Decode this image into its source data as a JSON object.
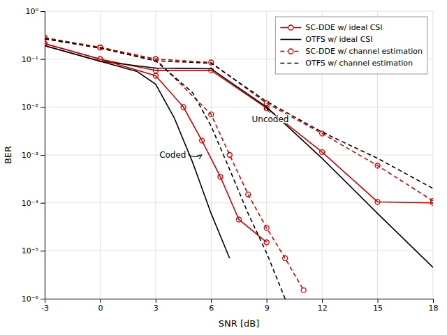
{
  "chart_data": {
    "type": "line",
    "xlabel": "SNR [dB]",
    "ylabel": "BER",
    "log": "y",
    "grid": true,
    "legend": "upper right",
    "xlim": [
      -3,
      18
    ],
    "xticks": [
      -3,
      0,
      3,
      6,
      9,
      12,
      15,
      18
    ],
    "ylim": [
      1e-06,
      1
    ],
    "yticks": [
      {
        "value": 1e-06,
        "label": "10⁻⁶"
      },
      {
        "value": 1e-05,
        "label": "10⁻⁵"
      },
      {
        "value": 0.0001,
        "label": "10⁻⁴"
      },
      {
        "value": 0.001,
        "label": "10⁻³"
      },
      {
        "value": 0.01,
        "label": "10⁻²"
      },
      {
        "value": 0.1,
        "label": "10⁻¹"
      },
      {
        "value": 1,
        "label": "10⁰"
      }
    ],
    "series": [
      {
        "name": "SC-DDE w/ ideal CSI",
        "color": "#CC0000",
        "line_style": "solid",
        "marker": "circle",
        "x": [
          -3,
          0,
          3,
          6,
          9,
          12,
          15,
          18
        ],
        "values": [
          0.21,
          0.1,
          0.058,
          0.058,
          0.0095,
          0.00115,
          0.000105,
          0.0001
        ]
      },
      {
        "name": "OTFS w/ ideal CSI",
        "color": "#000000",
        "line_style": "solid",
        "marker": "none",
        "x": [
          -3,
          0,
          3,
          6,
          9,
          12,
          15,
          18
        ],
        "values": [
          0.19,
          0.09,
          0.065,
          0.063,
          0.01,
          0.00085,
          6e-05,
          4.5e-06
        ]
      },
      {
        "name": "SC-DDE w/ channel estimation",
        "color": "#CC0000",
        "line_style": "dashed",
        "marker": "circle",
        "x": [
          -3,
          0,
          3,
          6,
          9,
          12,
          15,
          18
        ],
        "values": [
          0.28,
          0.175,
          0.1,
          0.085,
          0.012,
          0.0028,
          0.0006,
          0.00011
        ]
      },
      {
        "name": "OTFS w/ channel estimation",
        "color": "#000000",
        "line_style": "dashed",
        "marker": "none",
        "x": [
          -3,
          0,
          3,
          6,
          9,
          12,
          15,
          18
        ],
        "values": [
          0.265,
          0.17,
          0.092,
          0.082,
          0.013,
          0.003,
          0.00085,
          0.0002
        ]
      },
      {
        "color": "#CC0000",
        "line_style": "solid",
        "marker": "circle",
        "x": [
          -3,
          0,
          3,
          4.5,
          5.5,
          6.5,
          7.5,
          9
        ],
        "values": [
          0.21,
          0.1,
          0.045,
          0.01,
          0.002,
          0.00035,
          4.5e-05,
          1.5e-05
        ]
      },
      {
        "color": "#000000",
        "line_style": "solid",
        "marker": "none",
        "x": [
          -3,
          0,
          2,
          3,
          4,
          5,
          6,
          7
        ],
        "values": [
          0.19,
          0.09,
          0.055,
          0.03,
          0.006,
          0.0007,
          6e-05,
          7e-06
        ]
      },
      {
        "color": "#CC0000",
        "line_style": "dashed",
        "marker": "circle",
        "x": [
          -3,
          0,
          3,
          6,
          7,
          8,
          9,
          10,
          11
        ],
        "values": [
          0.28,
          0.175,
          0.1,
          0.007,
          0.001,
          0.00015,
          3e-05,
          7e-06,
          1.5e-06
        ]
      },
      {
        "color": "#000000",
        "line_style": "dashed",
        "marker": "none",
        "x": [
          -3,
          0,
          3,
          5,
          6,
          7,
          8,
          9,
          10
        ],
        "values": [
          0.265,
          0.17,
          0.092,
          0.02,
          0.004,
          0.0005,
          6e-05,
          9e-06,
          1e-06
        ]
      }
    ],
    "annotations": [
      {
        "text": "Uncoded",
        "x": 8.2,
        "y": 0.0055,
        "target_x": 9.0,
        "target_y": 0.0105,
        "curve": -0.3
      },
      {
        "text": "Coded",
        "x": 3.2,
        "y": 0.001,
        "target_x": 5.5,
        "target_y": 0.001,
        "curve": 0.3
      }
    ]
  }
}
